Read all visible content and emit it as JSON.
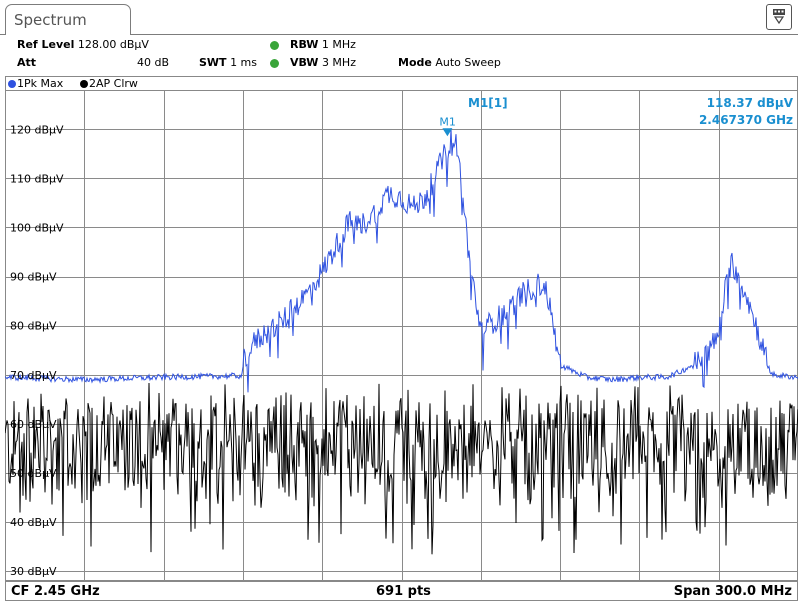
{
  "window": {
    "tab_label": "Spectrum"
  },
  "header": {
    "ref_level_label": "Ref Level",
    "ref_level_value": "128.00 dBµV",
    "att_label": "Att",
    "att_value": "40 dB",
    "swt_label": "SWT",
    "swt_value": "1 ms",
    "rbw_label": "RBW",
    "rbw_value": "1 MHz",
    "vbw_label": "VBW",
    "vbw_value": "3 MHz",
    "mode_label": "Mode",
    "mode_value": "Auto Sweep",
    "indicator_color": "#3aa53a"
  },
  "traces": [
    {
      "label": "1Pk Max",
      "color": "#2f52e0"
    },
    {
      "label": "2AP Clrw",
      "color": "#000000"
    }
  ],
  "marker": {
    "name": "M1",
    "readout_label": "M1[1]",
    "level": "118.37 dBµV",
    "freq": "2.467370 GHz",
    "color": "#1a8fd0"
  },
  "footer": {
    "center": "CF 2.45 GHz",
    "points": "691 pts",
    "span": "Span 300.0 MHz"
  },
  "chart_data": {
    "type": "line",
    "x_unit": "GHz",
    "xlim": [
      2.3,
      2.6
    ],
    "ylim": [
      28,
      128
    ],
    "yticks": [
      30,
      40,
      50,
      60,
      70,
      80,
      90,
      100,
      110,
      120
    ],
    "ytick_labels": [
      "30 dBµV",
      "40 dBµV",
      "50 dBµV",
      "60 dBµV",
      "70 dBµV",
      "80 dBµV",
      "90 dBµV",
      "100 dBµV",
      "110 dBµV",
      "120 dBµV"
    ],
    "grid": true,
    "series": [
      {
        "name": "1Pk Max",
        "color": "#2f52e0",
        "x": [
          2.3,
          2.33,
          2.36,
          2.39,
          2.3897,
          2.39,
          2.395,
          2.4,
          2.405,
          2.41,
          2.415,
          2.42,
          2.425,
          2.43,
          2.435,
          2.44,
          2.445,
          2.45,
          2.455,
          2.46,
          2.463,
          2.4674,
          2.469,
          2.4705,
          2.472,
          2.476,
          2.48,
          2.485,
          2.49,
          2.495,
          2.5,
          2.503,
          2.505,
          2.51,
          2.52,
          2.53,
          2.54,
          2.55,
          2.555,
          2.56,
          2.565,
          2.57,
          2.572,
          2.575,
          2.58,
          2.59,
          2.6
        ],
        "y": [
          69.5,
          69.0,
          69.5,
          69.8,
          70.0,
          73.0,
          77.0,
          79.0,
          81.0,
          84.0,
          87.0,
          91.0,
          96.0,
          101.0,
          100.5,
          103.0,
          107.0,
          106.0,
          104.0,
          107.0,
          111.0,
          116.0,
          118.4,
          118.0,
          112.0,
          92.0,
          79.0,
          81.0,
          83.0,
          86.0,
          88.0,
          88.5,
          87.0,
          72.0,
          69.5,
          69.0,
          69.5,
          69.5,
          70.5,
          72.0,
          74.0,
          78.0,
          86.0,
          93.0,
          87.0,
          70.0,
          69.5
        ]
      },
      {
        "name": "2AP Clrw",
        "color": "#000000",
        "x": [
          2.3,
          2.325,
          2.35,
          2.375,
          2.4,
          2.425,
          2.45,
          2.475,
          2.5,
          2.525,
          2.55,
          2.575,
          2.6
        ],
        "y": [
          55.5,
          55.0,
          55.5,
          55.0,
          55.5,
          56.0,
          55.5,
          55.0,
          55.5,
          55.0,
          55.5,
          55.0,
          55.5
        ],
        "spread": 10
      }
    ]
  }
}
